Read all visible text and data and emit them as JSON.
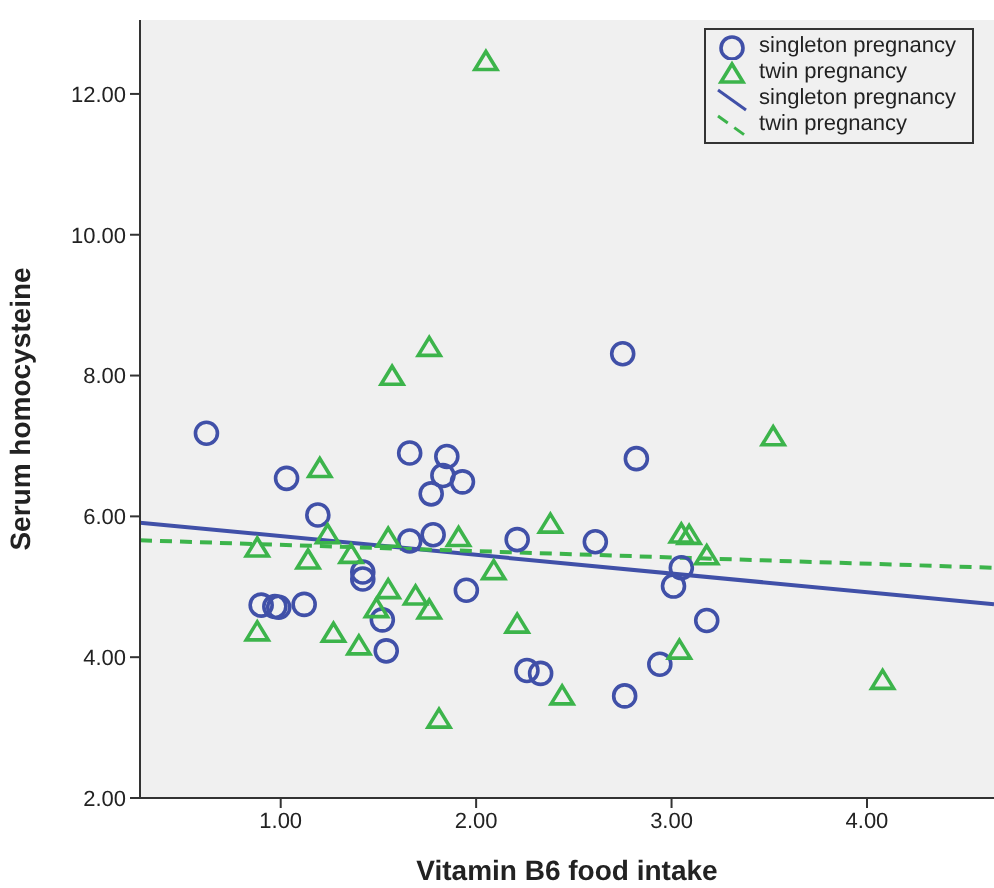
{
  "chart_data": {
    "type": "scatter",
    "xlabel": "Vitamin B6 food intake",
    "ylabel": "Serum homocysteine",
    "xlim": [
      0.28,
      4.65
    ],
    "ylim": [
      2,
      13.05
    ],
    "xticks": [
      {
        "value": 1,
        "label": "1.00"
      },
      {
        "value": 2,
        "label": "2.00"
      },
      {
        "value": 3,
        "label": "3.00"
      },
      {
        "value": 4,
        "label": "4.00"
      }
    ],
    "yticks": [
      {
        "value": 2,
        "label": "2.00"
      },
      {
        "value": 4,
        "label": "4.00"
      },
      {
        "value": 6,
        "label": "6.00"
      },
      {
        "value": 8,
        "label": "8.00"
      },
      {
        "value": 10,
        "label": "10.00"
      },
      {
        "value": 12,
        "label": "12.00"
      }
    ],
    "legend": "top right",
    "series": [
      {
        "name": "singleton pregnancy",
        "marker": "circle",
        "color": "#4050a8",
        "x": [
          0.62,
          1.03,
          1.19,
          1.66,
          1.85,
          1.83,
          1.93,
          1.77,
          1.66,
          1.78,
          1.42,
          1.42,
          0.9,
          0.97,
          0.99,
          1.12,
          1.95,
          1.52,
          1.54,
          2.21,
          2.26,
          2.33,
          2.61,
          2.82,
          3.05,
          3.01,
          3.18,
          2.94,
          2.76,
          2.75
        ],
        "values": [
          7.18,
          6.54,
          6.02,
          6.9,
          6.85,
          6.58,
          6.49,
          6.32,
          5.65,
          5.74,
          5.21,
          5.11,
          4.74,
          4.72,
          4.71,
          4.75,
          4.95,
          4.53,
          4.09,
          5.67,
          3.81,
          3.77,
          5.64,
          6.82,
          5.27,
          5.01,
          4.52,
          3.9,
          3.45,
          8.31
        ]
      },
      {
        "name": "twin pregnancy",
        "marker": "triangle",
        "color": "#3cb44b",
        "x": [
          1.2,
          0.88,
          1.24,
          1.14,
          1.36,
          1.55,
          1.91,
          2.09,
          1.55,
          1.69,
          1.76,
          1.49,
          0.88,
          1.27,
          1.4,
          1.81,
          2.21,
          2.38,
          2.44,
          2.05,
          1.76,
          1.57,
          3.05,
          3.09,
          3.18,
          3.04,
          3.52,
          4.08
        ],
        "values": [
          6.68,
          5.55,
          5.74,
          5.38,
          5.46,
          5.69,
          5.7,
          5.23,
          4.96,
          4.87,
          4.67,
          4.69,
          4.36,
          4.34,
          4.16,
          3.12,
          4.47,
          5.89,
          3.45,
          12.46,
          8.4,
          7.99,
          5.75,
          5.73,
          5.44,
          4.1,
          7.13,
          3.67
        ]
      },
      {
        "name": "singleton pregnancy",
        "type": "line",
        "line_style": "solid",
        "color": "#4050a8",
        "x": [
          0.28,
          4.65
        ],
        "values": [
          5.91,
          4.75
        ]
      },
      {
        "name": "twin pregnancy",
        "type": "line",
        "line_style": "dashed",
        "color": "#3cb44b",
        "x": [
          0.28,
          4.65
        ],
        "values": [
          5.66,
          5.27
        ]
      }
    ]
  }
}
